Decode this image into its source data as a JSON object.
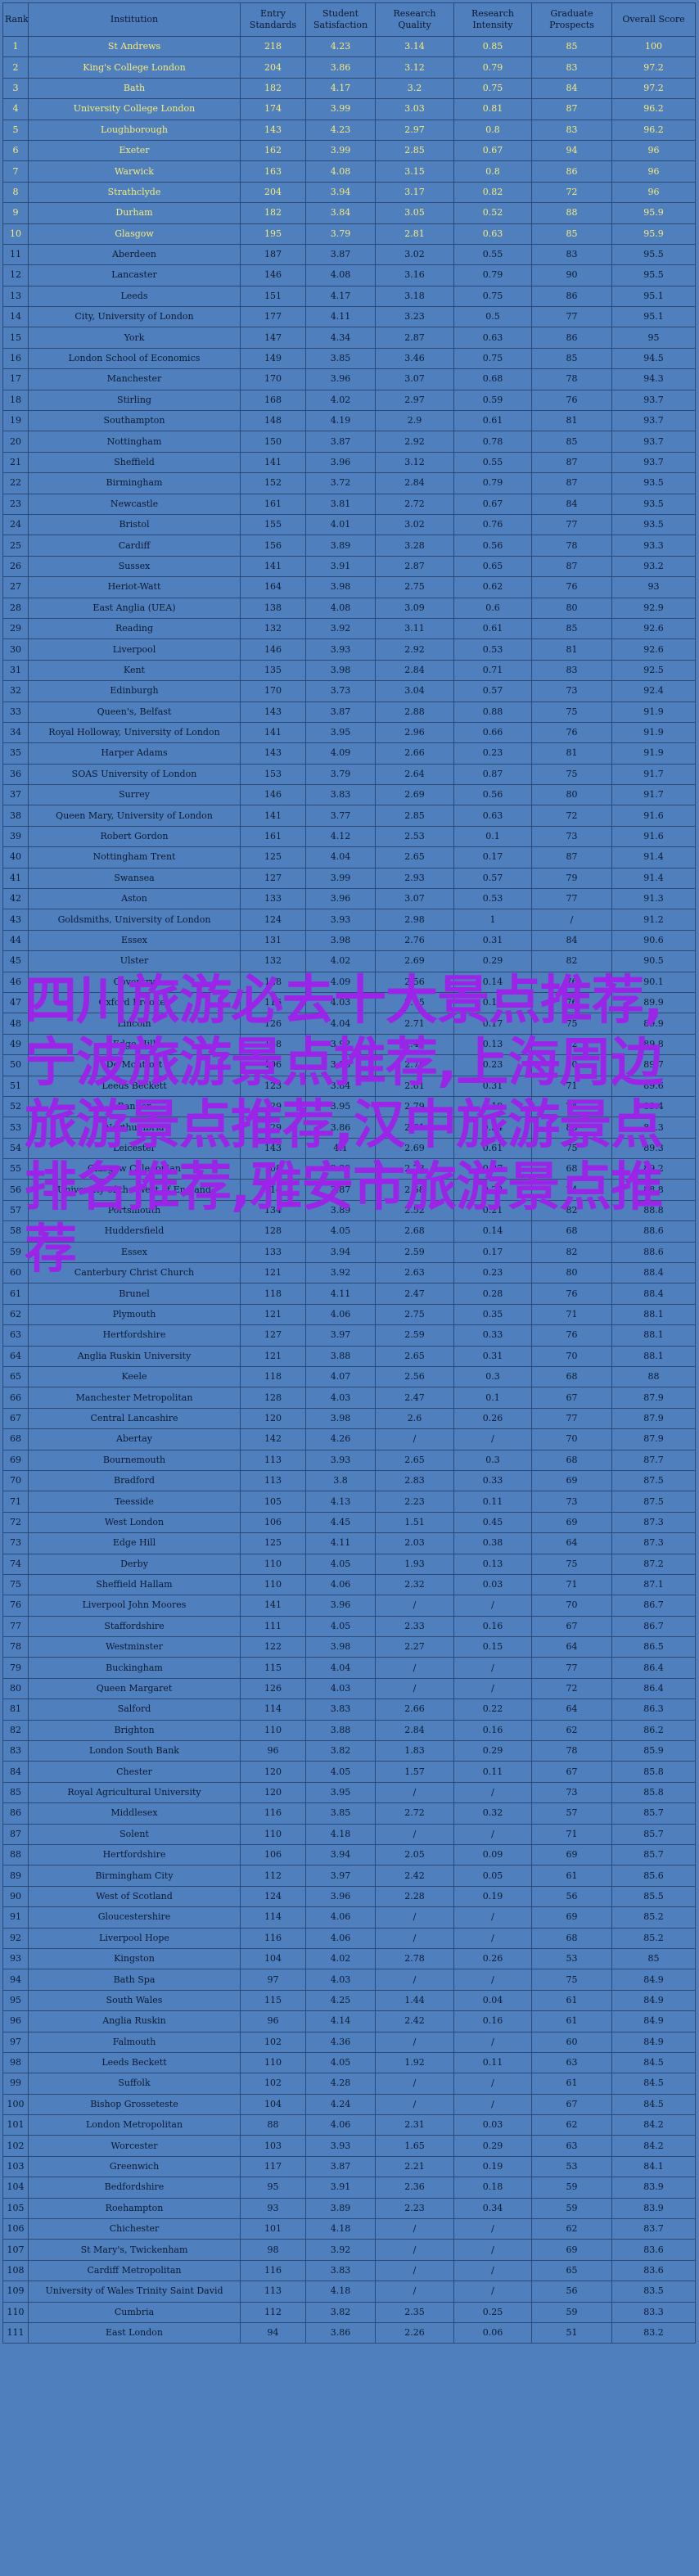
{
  "table": {
    "headers": [
      "Rank",
      "Institution",
      "Entry Standards",
      "Student Satisfaction",
      "Research Quality",
      "Research Intensity",
      "Graduate Prospects",
      "Overall Score"
    ],
    "rows": [
      [
        "1",
        "St Andrews",
        "218",
        "4.23",
        "3.14",
        "0.85",
        "85",
        "100"
      ],
      [
        "2",
        "King's College London",
        "204",
        "3.86",
        "3.12",
        "0.79",
        "83",
        "97.2"
      ],
      [
        "3",
        "Bath",
        "182",
        "4.17",
        "3.2",
        "0.75",
        "84",
        "97.2"
      ],
      [
        "4",
        "University College London",
        "174",
        "3.99",
        "3.03",
        "0.81",
        "87",
        "96.2"
      ],
      [
        "5",
        "Loughborough",
        "143",
        "4.23",
        "2.97",
        "0.8",
        "83",
        "96.2"
      ],
      [
        "6",
        "Exeter",
        "162",
        "3.99",
        "2.85",
        "0.67",
        "94",
        "96"
      ],
      [
        "7",
        "Warwick",
        "163",
        "4.08",
        "3.15",
        "0.8",
        "86",
        "96"
      ],
      [
        "8",
        "Strathclyde",
        "204",
        "3.94",
        "3.17",
        "0.82",
        "72",
        "96"
      ],
      [
        "9",
        "Durham",
        "182",
        "3.84",
        "3.05",
        "0.52",
        "88",
        "95.9"
      ],
      [
        "10",
        "Glasgow",
        "195",
        "3.79",
        "2.81",
        "0.63",
        "85",
        "95.9"
      ],
      [
        "11",
        "Aberdeen",
        "187",
        "3.87",
        "3.02",
        "0.55",
        "83",
        "95.5"
      ],
      [
        "12",
        "Lancaster",
        "146",
        "4.08",
        "3.16",
        "0.79",
        "90",
        "95.5"
      ],
      [
        "13",
        "Leeds",
        "151",
        "4.17",
        "3.18",
        "0.75",
        "86",
        "95.1"
      ],
      [
        "14",
        "City, University of London",
        "177",
        "4.11",
        "3.23",
        "0.5",
        "77",
        "95.1"
      ],
      [
        "15",
        "York",
        "147",
        "4.34",
        "2.87",
        "0.63",
        "86",
        "95"
      ],
      [
        "16",
        "London School of Economics",
        "149",
        "3.85",
        "3.46",
        "0.75",
        "85",
        "94.5"
      ],
      [
        "17",
        "Manchester",
        "170",
        "3.96",
        "3.07",
        "0.68",
        "78",
        "94.3"
      ],
      [
        "18",
        "Stirling",
        "168",
        "4.02",
        "2.97",
        "0.59",
        "76",
        "93.7"
      ],
      [
        "19",
        "Southampton",
        "148",
        "4.19",
        "2.9",
        "0.61",
        "81",
        "93.7"
      ],
      [
        "20",
        "Nottingham",
        "150",
        "3.87",
        "2.92",
        "0.78",
        "85",
        "93.7"
      ],
      [
        "21",
        "Sheffield",
        "141",
        "3.96",
        "3.12",
        "0.55",
        "87",
        "93.7"
      ],
      [
        "22",
        "Birmingham",
        "152",
        "3.72",
        "2.84",
        "0.79",
        "87",
        "93.5"
      ],
      [
        "23",
        "Newcastle",
        "161",
        "3.81",
        "2.72",
        "0.67",
        "84",
        "93.5"
      ],
      [
        "24",
        "Bristol",
        "155",
        "4.01",
        "3.02",
        "0.76",
        "77",
        "93.5"
      ],
      [
        "25",
        "Cardiff",
        "156",
        "3.89",
        "3.28",
        "0.56",
        "78",
        "93.3"
      ],
      [
        "26",
        "Sussex",
        "141",
        "3.91",
        "2.87",
        "0.65",
        "87",
        "93.2"
      ],
      [
        "27",
        "Heriot-Watt",
        "164",
        "3.98",
        "2.75",
        "0.62",
        "76",
        "93"
      ],
      [
        "28",
        "East Anglia (UEA)",
        "138",
        "4.08",
        "3.09",
        "0.6",
        "80",
        "92.9"
      ],
      [
        "29",
        "Reading",
        "132",
        "3.92",
        "3.11",
        "0.61",
        "85",
        "92.6"
      ],
      [
        "30",
        "Liverpool",
        "146",
        "3.93",
        "2.92",
        "0.53",
        "81",
        "92.6"
      ],
      [
        "31",
        "Kent",
        "135",
        "3.98",
        "2.84",
        "0.71",
        "83",
        "92.5"
      ],
      [
        "32",
        "Edinburgh",
        "170",
        "3.73",
        "3.04",
        "0.57",
        "73",
        "92.4"
      ],
      [
        "33",
        "Queen's, Belfast",
        "143",
        "3.87",
        "2.88",
        "0.88",
        "75",
        "91.9"
      ],
      [
        "34",
        "Royal Holloway, University of London",
        "141",
        "3.95",
        "2.96",
        "0.66",
        "76",
        "91.9"
      ],
      [
        "35",
        "Harper Adams",
        "143",
        "4.09",
        "2.66",
        "0.23",
        "81",
        "91.9"
      ],
      [
        "36",
        "SOAS University of London",
        "153",
        "3.79",
        "2.64",
        "0.87",
        "75",
        "91.7"
      ],
      [
        "37",
        "Surrey",
        "146",
        "3.83",
        "2.69",
        "0.56",
        "80",
        "91.7"
      ],
      [
        "38",
        "Queen Mary, University of London",
        "141",
        "3.77",
        "2.85",
        "0.63",
        "72",
        "91.6"
      ],
      [
        "39",
        "Robert Gordon",
        "161",
        "4.12",
        "2.53",
        "0.1",
        "73",
        "91.6"
      ],
      [
        "40",
        "Nottingham Trent",
        "125",
        "4.04",
        "2.65",
        "0.17",
        "87",
        "91.4"
      ],
      [
        "41",
        "Swansea",
        "127",
        "3.99",
        "2.93",
        "0.57",
        "79",
        "91.4"
      ],
      [
        "42",
        "Aston",
        "133",
        "3.96",
        "3.07",
        "0.53",
        "77",
        "91.3"
      ],
      [
        "43",
        "Goldsmiths, University of London",
        "124",
        "3.93",
        "2.98",
        "1",
        "/",
        "91.2"
      ],
      [
        "44",
        "Essex",
        "131",
        "3.98",
        "2.76",
        "0.31",
        "84",
        "90.6"
      ],
      [
        "45",
        "Ulster",
        "132",
        "4.02",
        "2.69",
        "0.29",
        "82",
        "90.5"
      ],
      [
        "46",
        "Coventry",
        "128",
        "4.09",
        "2.56",
        "0.14",
        "76",
        "90.1"
      ],
      [
        "47",
        "Oxford Brookes",
        "116",
        "4.03",
        "2.65",
        "0.19",
        "76",
        "89.9"
      ],
      [
        "48",
        "Lincoln",
        "126",
        "4.04",
        "2.71",
        "0.17",
        "75",
        "89.9"
      ],
      [
        "49",
        "Edge Hill",
        "138",
        "3.92",
        "2.47",
        "0.13",
        "82",
        "89.8"
      ],
      [
        "50",
        "De Montfort",
        "106",
        "3.96",
        "2.75",
        "0.23",
        "80",
        "89.7"
      ],
      [
        "51",
        "Leeds Beckett",
        "123",
        "3.84",
        "2.81",
        "0.31",
        "71",
        "89.6"
      ],
      [
        "52",
        "Bangor",
        "129",
        "3.95",
        "2.79",
        "0.19",
        "74",
        "89.4"
      ],
      [
        "53",
        "Northumbria",
        "129",
        "3.86",
        "2.61",
        "0.34",
        "83",
        "89.3"
      ],
      [
        "54",
        "Leicester",
        "143",
        "4.1",
        "2.69",
        "0.61",
        "75",
        "89.3"
      ],
      [
        "55",
        "Glasgow Caledonian",
        "108",
        "3.89",
        "2.73",
        "0.37",
        "68",
        "89.2"
      ],
      [
        "56",
        "University of the West of England",
        "114",
        "3.87",
        "2.58",
        "0.22",
        "74",
        "88.8"
      ],
      [
        "57",
        "Portsmouth",
        "134",
        "3.89",
        "2.52",
        "0.21",
        "82",
        "88.8"
      ],
      [
        "58",
        "Huddersfield",
        "128",
        "4.05",
        "2.68",
        "0.14",
        "68",
        "88.6"
      ],
      [
        "59",
        "Essex",
        "133",
        "3.94",
        "2.59",
        "0.17",
        "82",
        "88.6"
      ],
      [
        "60",
        "Canterbury Christ Church",
        "121",
        "3.92",
        "2.63",
        "0.23",
        "80",
        "88.4"
      ],
      [
        "61",
        "Brunel",
        "118",
        "4.11",
        "2.47",
        "0.28",
        "76",
        "88.4"
      ],
      [
        "62",
        "Plymouth",
        "121",
        "4.06",
        "2.75",
        "0.35",
        "71",
        "88.1"
      ],
      [
        "63",
        "Hertfordshire",
        "127",
        "3.97",
        "2.59",
        "0.33",
        "76",
        "88.1"
      ],
      [
        "64",
        "Anglia Ruskin University",
        "121",
        "3.88",
        "2.65",
        "0.31",
        "70",
        "88.1"
      ],
      [
        "65",
        "Keele",
        "118",
        "4.07",
        "2.56",
        "0.3",
        "68",
        "88"
      ],
      [
        "66",
        "Manchester Metropolitan",
        "128",
        "4.03",
        "2.47",
        "0.1",
        "67",
        "87.9"
      ],
      [
        "67",
        "Central Lancashire",
        "120",
        "3.98",
        "2.6",
        "0.26",
        "77",
        "87.9"
      ],
      [
        "68",
        "Abertay",
        "142",
        "4.26",
        "/",
        "/",
        "70",
        "87.9"
      ],
      [
        "69",
        "Bournemouth",
        "113",
        "3.93",
        "2.65",
        "0.3",
        "68",
        "87.7"
      ],
      [
        "70",
        "Bradford",
        "113",
        "3.8",
        "2.83",
        "0.33",
        "69",
        "87.5"
      ],
      [
        "71",
        "Teesside",
        "105",
        "4.13",
        "2.23",
        "0.11",
        "73",
        "87.5"
      ],
      [
        "72",
        "West London",
        "106",
        "4.45",
        "1.51",
        "0.45",
        "69",
        "87.3"
      ],
      [
        "73",
        "Edge Hill",
        "125",
        "4.11",
        "2.03",
        "0.38",
        "64",
        "87.3"
      ],
      [
        "74",
        "Derby",
        "110",
        "4.05",
        "1.93",
        "0.13",
        "75",
        "87.2"
      ],
      [
        "75",
        "Sheffield Hallam",
        "110",
        "4.06",
        "2.32",
        "0.03",
        "71",
        "87.1"
      ],
      [
        "76",
        "Liverpool John Moores",
        "141",
        "3.96",
        "/",
        "/",
        "70",
        "86.7"
      ],
      [
        "77",
        "Staffordshire",
        "111",
        "4.05",
        "2.33",
        "0.16",
        "67",
        "86.7"
      ],
      [
        "78",
        "Westminster",
        "122",
        "3.98",
        "2.27",
        "0.15",
        "64",
        "86.5"
      ],
      [
        "79",
        "Buckingham",
        "115",
        "4.04",
        "/",
        "/",
        "77",
        "86.4"
      ],
      [
        "80",
        "Queen Margaret",
        "126",
        "4.03",
        "/",
        "/",
        "72",
        "86.4"
      ],
      [
        "81",
        "Salford",
        "114",
        "3.83",
        "2.66",
        "0.22",
        "64",
        "86.3"
      ],
      [
        "82",
        "Brighton",
        "110",
        "3.88",
        "2.84",
        "0.16",
        "62",
        "86.2"
      ],
      [
        "83",
        "London South Bank",
        "96",
        "3.82",
        "1.83",
        "0.29",
        "78",
        "85.9"
      ],
      [
        "84",
        "Chester",
        "120",
        "4.05",
        "1.57",
        "0.11",
        "67",
        "85.8"
      ],
      [
        "85",
        "Royal Agricultural University",
        "120",
        "3.95",
        "/",
        "/",
        "73",
        "85.8"
      ],
      [
        "86",
        "Middlesex",
        "116",
        "3.85",
        "2.72",
        "0.32",
        "57",
        "85.7"
      ],
      [
        "87",
        "Solent",
        "110",
        "4.18",
        "/",
        "/",
        "71",
        "85.7"
      ],
      [
        "88",
        "Hertfordshire",
        "106",
        "3.94",
        "2.05",
        "0.09",
        "69",
        "85.7"
      ],
      [
        "89",
        "Birmingham City",
        "112",
        "3.97",
        "2.42",
        "0.05",
        "61",
        "85.6"
      ],
      [
        "90",
        "West of Scotland",
        "124",
        "3.96",
        "2.28",
        "0.19",
        "56",
        "85.5"
      ],
      [
        "91",
        "Gloucestershire",
        "114",
        "4.06",
        "/",
        "/",
        "69",
        "85.2"
      ],
      [
        "92",
        "Liverpool Hope",
        "116",
        "4.06",
        "/",
        "/",
        "68",
        "85.2"
      ],
      [
        "93",
        "Kingston",
        "104",
        "4.02",
        "2.78",
        "0.26",
        "53",
        "85"
      ],
      [
        "94",
        "Bath Spa",
        "97",
        "4.03",
        "/",
        "/",
        "75",
        "84.9"
      ],
      [
        "95",
        "South Wales",
        "115",
        "4.25",
        "1.44",
        "0.04",
        "61",
        "84.9"
      ],
      [
        "96",
        "Anglia Ruskin",
        "96",
        "4.14",
        "2.42",
        "0.16",
        "61",
        "84.9"
      ],
      [
        "97",
        "Falmouth",
        "102",
        "4.36",
        "/",
        "/",
        "60",
        "84.9"
      ],
      [
        "98",
        "Leeds Beckett",
        "110",
        "4.05",
        "1.92",
        "0.11",
        "63",
        "84.5"
      ],
      [
        "99",
        "Suffolk",
        "102",
        "4.28",
        "/",
        "/",
        "61",
        "84.5"
      ],
      [
        "100",
        "Bishop Grosseteste",
        "104",
        "4.24",
        "/",
        "/",
        "67",
        "84.5"
      ],
      [
        "101",
        "London Metropolitan",
        "88",
        "4.06",
        "2.31",
        "0.03",
        "62",
        "84.2"
      ],
      [
        "102",
        "Worcester",
        "103",
        "3.93",
        "1.65",
        "0.29",
        "63",
        "84.2"
      ],
      [
        "103",
        "Greenwich",
        "117",
        "3.87",
        "2.21",
        "0.19",
        "53",
        "84.1"
      ],
      [
        "104",
        "Bedfordshire",
        "95",
        "3.91",
        "2.36",
        "0.18",
        "59",
        "83.9"
      ],
      [
        "105",
        "Roehampton",
        "93",
        "3.89",
        "2.23",
        "0.34",
        "59",
        "83.9"
      ],
      [
        "106",
        "Chichester",
        "101",
        "4.18",
        "/",
        "/",
        "62",
        "83.7"
      ],
      [
        "107",
        "St Mary's, Twickenham",
        "98",
        "3.92",
        "/",
        "/",
        "69",
        "83.6"
      ],
      [
        "108",
        "Cardiff Metropolitan",
        "116",
        "3.83",
        "/",
        "/",
        "65",
        "83.6"
      ],
      [
        "109",
        "University of Wales Trinity Saint David",
        "113",
        "4.18",
        "/",
        "/",
        "56",
        "83.5"
      ],
      [
        "110",
        "Cumbria",
        "112",
        "3.82",
        "2.35",
        "0.25",
        "59",
        "83.3"
      ],
      [
        "111",
        "East London",
        "94",
        "3.86",
        "2.26",
        "0.06",
        "51",
        "83.2"
      ]
    ]
  },
  "overlay": {
    "text": "四川旅游必去十大景点推荐,宁波旅游景点推荐,上海周边旅游景点推荐,汉中旅游景点排名推荐,雅安市旅游景点推荐"
  }
}
